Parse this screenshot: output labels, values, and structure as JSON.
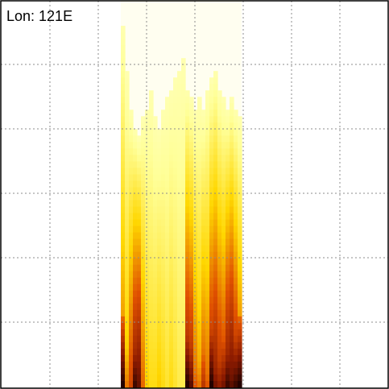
{
  "label": "Lon: 121E",
  "chart_data": {
    "type": "heatmap",
    "title": "",
    "xlabel": "",
    "ylabel": "",
    "colormap": "hot",
    "background": "#fffef0",
    "grid": true,
    "colors": {
      "colormap_stops": [
        "#fffff5",
        "#ffff99",
        "#ffd700",
        "#e05000",
        "#8b1a00",
        "#1a0000"
      ],
      "grid": "#8c8c8c",
      "frame": "#000000"
    },
    "column_groups": [
      {
        "name": "group-1",
        "x_start": 150,
        "x_end": 230,
        "columns": [
          {
            "x": 0,
            "top": 0.12,
            "peak": 0.55,
            "bottom_peak": 1.0
          },
          {
            "x": 5,
            "top": 0.35,
            "peak": 0.4,
            "bottom_peak": 0.55
          },
          {
            "x": 10,
            "top": 0.55,
            "peak": 0.65,
            "bottom_peak": 0.5
          },
          {
            "x": 15,
            "top": 0.65,
            "peak": 0.9,
            "bottom_peak": 0.95
          },
          {
            "x": 20,
            "top": 0.7,
            "peak": 0.95,
            "bottom_peak": 0.85
          },
          {
            "x": 25,
            "top": 0.6,
            "peak": 0.55,
            "bottom_peak": 0.45
          },
          {
            "x": 30,
            "top": 0.55,
            "peak": 0.35,
            "bottom_peak": 0.4
          },
          {
            "x": 35,
            "top": 0.45,
            "peak": 0.3,
            "bottom_peak": 0.3
          },
          {
            "x": 40,
            "top": 0.6,
            "peak": 0.3,
            "bottom_peak": 0.35
          },
          {
            "x": 45,
            "top": 0.65,
            "peak": 0.35,
            "bottom_peak": 0.35
          },
          {
            "x": 50,
            "top": 0.55,
            "peak": 0.3,
            "bottom_peak": 0.3
          },
          {
            "x": 55,
            "top": 0.5,
            "peak": 0.25,
            "bottom_peak": 0.3
          },
          {
            "x": 60,
            "top": 0.45,
            "peak": 0.3,
            "bottom_peak": 0.35
          },
          {
            "x": 65,
            "top": 0.4,
            "peak": 0.25,
            "bottom_peak": 0.3
          },
          {
            "x": 70,
            "top": 0.35,
            "peak": 0.2,
            "bottom_peak": 0.25
          },
          {
            "x": 75,
            "top": 0.3,
            "peak": 0.2,
            "bottom_peak": 0.25
          }
        ]
      },
      {
        "name": "group-2",
        "x_start": 230,
        "x_end": 300,
        "columns": [
          {
            "x": 0,
            "top": 0.45,
            "peak": 0.85,
            "bottom_peak": 1.0
          },
          {
            "x": 5,
            "top": 0.5,
            "peak": 0.8,
            "bottom_peak": 0.9
          },
          {
            "x": 10,
            "top": 0.55,
            "peak": 0.55,
            "bottom_peak": 0.6
          },
          {
            "x": 15,
            "top": 0.5,
            "peak": 0.45,
            "bottom_peak": 0.55
          },
          {
            "x": 20,
            "top": 0.55,
            "peak": 0.6,
            "bottom_peak": 0.7
          },
          {
            "x": 25,
            "top": 0.45,
            "peak": 0.55,
            "bottom_peak": 0.6
          },
          {
            "x": 30,
            "top": 0.4,
            "peak": 0.8,
            "bottom_peak": 1.0
          },
          {
            "x": 35,
            "top": 0.35,
            "peak": 0.85,
            "bottom_peak": 0.85
          },
          {
            "x": 40,
            "top": 0.45,
            "peak": 0.75,
            "bottom_peak": 0.8
          },
          {
            "x": 45,
            "top": 0.5,
            "peak": 0.7,
            "bottom_peak": 0.85
          },
          {
            "x": 50,
            "top": 0.55,
            "peak": 0.9,
            "bottom_peak": 0.95
          },
          {
            "x": 55,
            "top": 0.5,
            "peak": 0.95,
            "bottom_peak": 0.9
          },
          {
            "x": 60,
            "top": 0.55,
            "peak": 0.8,
            "bottom_peak": 0.95
          },
          {
            "x": 65,
            "top": 0.6,
            "peak": 0.6,
            "bottom_peak": 1.0
          }
        ]
      }
    ]
  }
}
